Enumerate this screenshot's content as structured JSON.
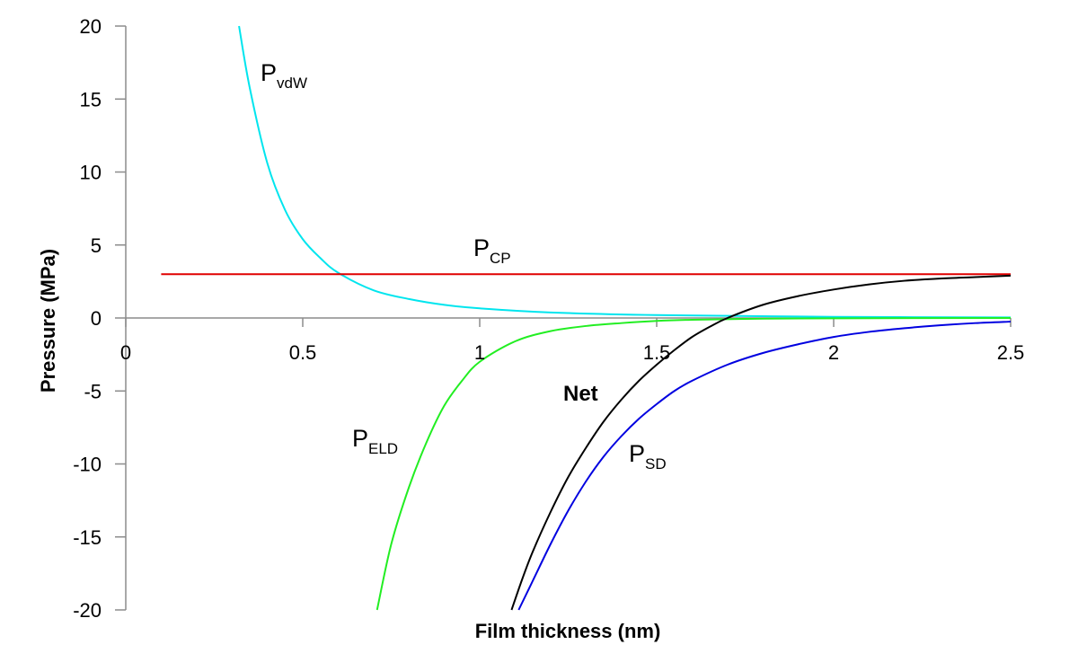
{
  "chart_data": {
    "type": "line",
    "title": "",
    "xlabel": "Film thickness (nm)",
    "ylabel": "Pressure (MPa)",
    "xlim": [
      0,
      2.5
    ],
    "ylim": [
      -20,
      20
    ],
    "x_ticks": [
      "0",
      "0.5",
      "1",
      "1.5",
      "2",
      "2.5"
    ],
    "y_ticks": [
      "20",
      "15",
      "10",
      "5",
      "0",
      "-5",
      "-10",
      "-15",
      "-20"
    ],
    "grid": false,
    "legend": "none",
    "series": [
      {
        "name": "P_vdW",
        "label_main": "P",
        "label_sub": "vdW",
        "color": "#00e5ee",
        "x": [
          0.32,
          0.35,
          0.4,
          0.45,
          0.5,
          0.55,
          0.6,
          0.7,
          0.8,
          0.9,
          1.0,
          1.2,
          1.5,
          2.0,
          2.5
        ],
        "y": [
          20.0,
          15.8,
          10.6,
          7.4,
          5.4,
          4.1,
          3.1,
          1.9,
          1.3,
          0.9,
          0.66,
          0.38,
          0.2,
          0.08,
          0.04
        ]
      },
      {
        "name": "P_CP",
        "label_main": "P",
        "label_sub": "CP",
        "color": "#e00000",
        "x": [
          0.1,
          2.5
        ],
        "y": [
          3.0,
          3.0
        ]
      },
      {
        "name": "P_ELD",
        "label_main": "P",
        "label_sub": "ELD",
        "color": "#22ee22",
        "x": [
          0.71,
          0.75,
          0.8,
          0.85,
          0.9,
          0.95,
          1.0,
          1.1,
          1.2,
          1.3,
          1.4,
          1.5,
          1.6,
          1.8,
          2.0,
          2.5
        ],
        "y": [
          -20.0,
          -15.5,
          -11.6,
          -8.5,
          -6.0,
          -4.3,
          -3.0,
          -1.6,
          -0.9,
          -0.55,
          -0.35,
          -0.2,
          -0.12,
          -0.05,
          -0.02,
          0.0
        ]
      },
      {
        "name": "Net",
        "label_main": "Net",
        "label_sub": "",
        "color": "#000000",
        "x": [
          1.09,
          1.12,
          1.15,
          1.2,
          1.25,
          1.3,
          1.35,
          1.4,
          1.45,
          1.5,
          1.55,
          1.6,
          1.65,
          1.7,
          1.8,
          1.9,
          2.0,
          2.1,
          2.2,
          2.3,
          2.4,
          2.5
        ],
        "y": [
          -20.0,
          -17.9,
          -16.0,
          -13.3,
          -10.9,
          -8.9,
          -7.1,
          -5.6,
          -4.3,
          -3.2,
          -2.2,
          -1.3,
          -0.6,
          0.0,
          0.9,
          1.5,
          1.95,
          2.3,
          2.55,
          2.7,
          2.8,
          2.9
        ]
      },
      {
        "name": "P_SD",
        "label_main": "P",
        "label_sub": "SD",
        "color": "#0000e0",
        "x": [
          1.11,
          1.15,
          1.2,
          1.25,
          1.3,
          1.35,
          1.4,
          1.45,
          1.5,
          1.55,
          1.6,
          1.7,
          1.8,
          1.9,
          2.0,
          2.1,
          2.2,
          2.3,
          2.4,
          2.5
        ],
        "y": [
          -20.0,
          -18.0,
          -15.5,
          -13.2,
          -11.2,
          -9.5,
          -8.1,
          -6.9,
          -5.9,
          -5.0,
          -4.3,
          -3.2,
          -2.4,
          -1.8,
          -1.3,
          -0.95,
          -0.7,
          -0.5,
          -0.35,
          -0.25
        ]
      }
    ]
  }
}
